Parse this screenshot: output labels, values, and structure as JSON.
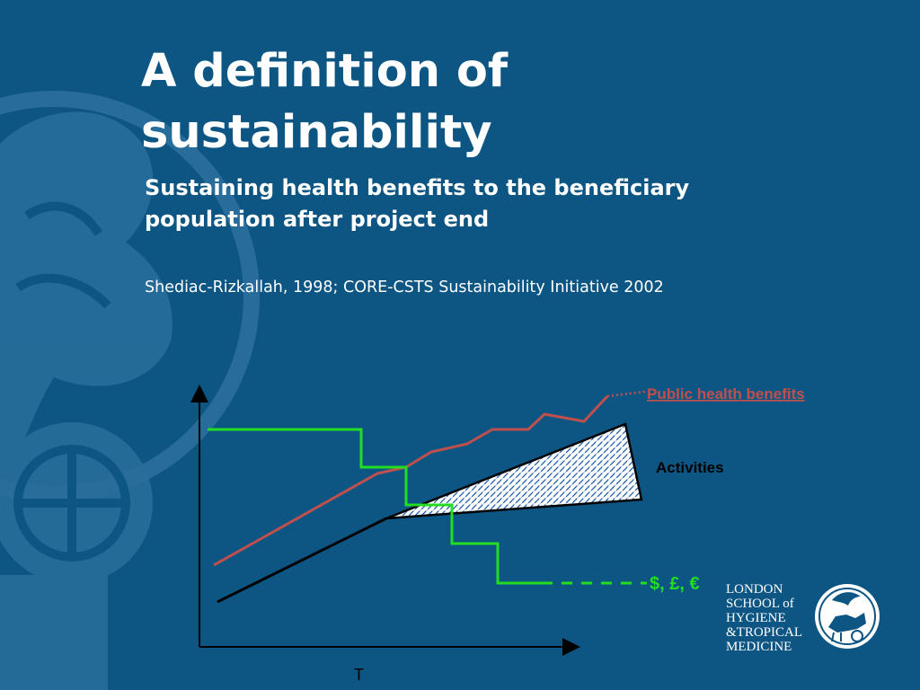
{
  "slide": {
    "title": "A definition of sustainability",
    "subtitle": "Sustaining health benefits to the beneficiary population after project end",
    "citation": "Shediac-Rizkallah, 1998; CORE-CSTS Sustainability Initiative 2002"
  },
  "diagram": {
    "labels": {
      "public_health_benefits": "Public health benefits",
      "activities": "Activities",
      "money": "$, £, €",
      "x_axis": "T"
    },
    "colors": {
      "background": "#0d5684",
      "benefits_line": "#c0504d",
      "activities_line": "#000000",
      "money_line": "#22dd22",
      "hatch": "#1f5fa8",
      "axis": "#000000"
    }
  },
  "logo": {
    "lines": [
      "LONDON",
      "SCHOOL of",
      "HYGIENE",
      "&TROPICAL",
      "MEDICINE"
    ]
  }
}
